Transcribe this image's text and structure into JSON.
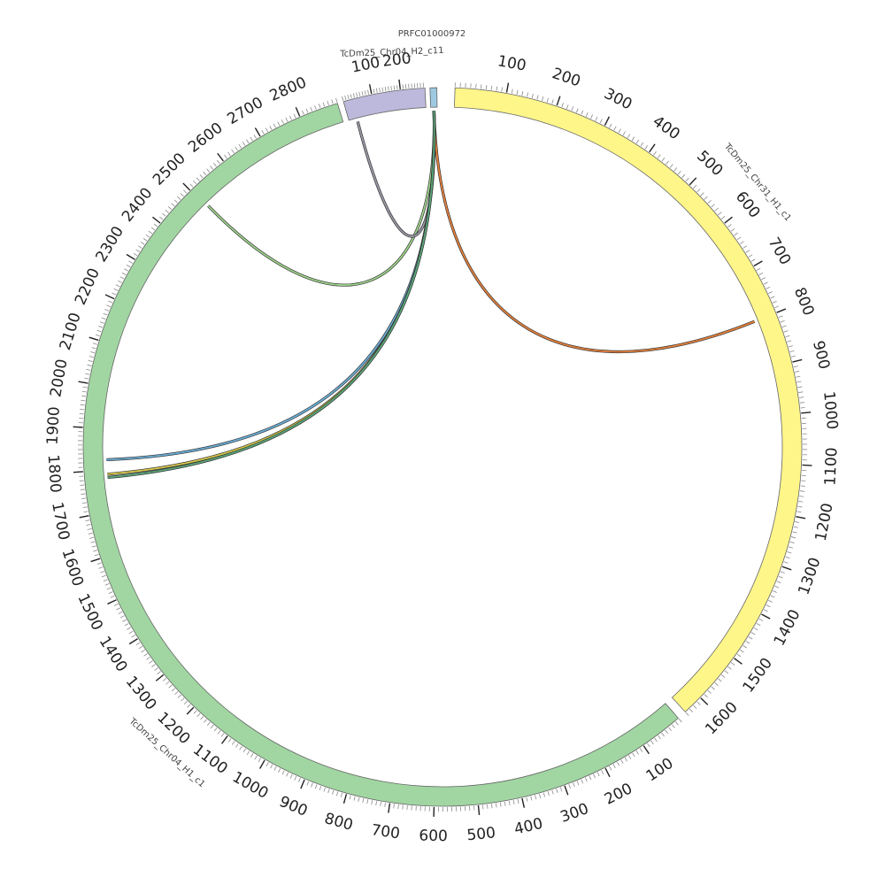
{
  "chart_data": {
    "type": "circos",
    "segments": [
      {
        "id": "chr31",
        "name": "TcDm25_Chr31_H1_c1",
        "length": 1640,
        "color": "#fff68a",
        "tick_labels": [
          "100",
          "200",
          "300",
          "400",
          "500",
          "600",
          "700",
          "800",
          "900",
          "1000",
          "1100",
          "1200",
          "1300",
          "1400",
          "1500",
          "1600"
        ]
      },
      {
        "id": "chr04",
        "name": "TcDm25_Chr04_H1_c1",
        "length": 2890,
        "color": "#a1d6a2",
        "tick_labels": [
          "100",
          "200",
          "300",
          "400",
          "500",
          "600",
          "700",
          "800",
          "900",
          "1000",
          "1100",
          "1200",
          "1300",
          "1400",
          "1500",
          "1600",
          "1700",
          "1800",
          "1900",
          "2000",
          "2100",
          "2200",
          "2300",
          "2400",
          "2500",
          "2600",
          "2700",
          "2800"
        ]
      },
      {
        "id": "h2c11",
        "name": "TcDm25_Chr04_H2_c11",
        "length": 285,
        "color": "#bcb9dc",
        "tick_labels": [
          "100",
          "200"
        ]
      },
      {
        "id": "prfc",
        "name": "PRFC01000972",
        "length": 12,
        "color": "#9ecae1",
        "tick_labels": []
      }
    ],
    "links": [
      {
        "from_segment": "prfc",
        "from_pos": 6,
        "to_segment": "chr31",
        "to_pos": 800,
        "color": "#e6813b"
      },
      {
        "from_segment": "prfc",
        "from_pos": 6,
        "to_segment": "chr04",
        "to_pos": 2505,
        "color": "#9fd48c"
      },
      {
        "from_segment": "prfc",
        "from_pos": 6,
        "to_segment": "h2c11",
        "to_pos": 30,
        "color": "#9b9aa8"
      },
      {
        "from_segment": "prfc",
        "from_pos": 6,
        "to_segment": "chr04",
        "to_pos": 1825,
        "color": "#6baed6"
      },
      {
        "from_segment": "prfc",
        "from_pos": 6,
        "to_segment": "chr04",
        "to_pos": 1790,
        "color": "#d9c94a"
      },
      {
        "from_segment": "prfc",
        "from_pos": 6,
        "to_segment": "chr04",
        "to_pos": 1782,
        "color": "#5aa77a"
      }
    ]
  }
}
